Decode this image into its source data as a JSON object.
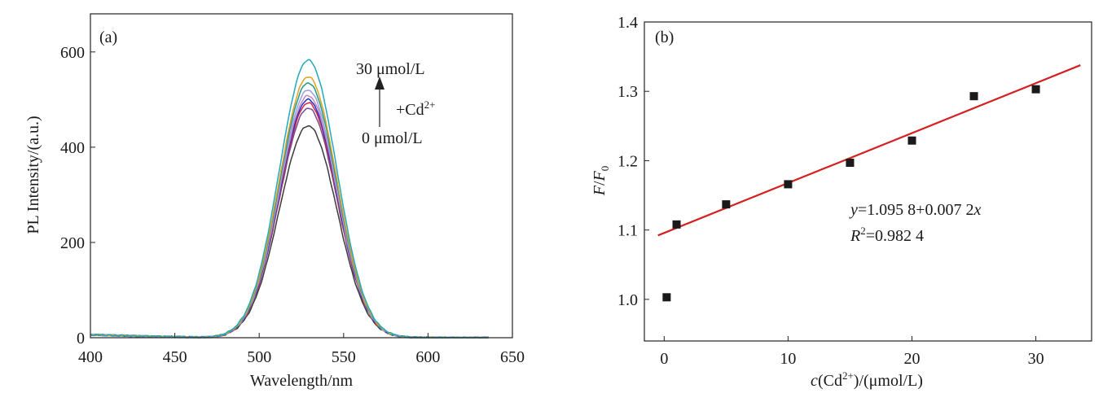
{
  "chart_data": [
    {
      "panel_label": "(a)",
      "type": "line",
      "xlabel": "Wavelength/nm",
      "ylabel": "PL Intensity/(a.u.)",
      "xlim": [
        400,
        650
      ],
      "ylim": [
        0,
        680
      ],
      "xticks": [
        "400",
        "450",
        "500",
        "550",
        "600",
        "650"
      ],
      "yticks": [
        "0",
        "200",
        "400",
        "600"
      ],
      "grid": false,
      "annotation": {
        "top": "30 μmol/L",
        "middle_prefix": "+Cd",
        "middle_sup": "2+",
        "bottom": "0 μmol/L"
      },
      "peak_center_nm": 529,
      "peak_width_sigma_nm": 17,
      "baseline_start": 6,
      "series": [
        {
          "color": "#3a3a3a",
          "peak": 445
        },
        {
          "color": "#7a4a8a",
          "peak": 482
        },
        {
          "color": "#d0283c",
          "peak": 493
        },
        {
          "color": "#2a2ad0",
          "peak": 500
        },
        {
          "color": "#c08ab8",
          "peak": 508
        },
        {
          "color": "#9aa0e0",
          "peak": 520
        },
        {
          "color": "#1e9a8c",
          "peak": 535
        },
        {
          "color": "#e0a020",
          "peak": 548
        },
        {
          "color": "#20a8c0",
          "peak": 583
        }
      ]
    },
    {
      "panel_label": "(b)",
      "type": "scatter",
      "xlabel": {
        "italic": "c",
        "pre": "(Cd",
        "sup": "2+",
        "post": ")/(μmol/L)"
      },
      "ylabel": {
        "italic1": "F",
        "slash": "/",
        "italic2": "F",
        "sub": "0"
      },
      "xlim": [
        -1.6,
        34.5
      ],
      "ylim": [
        0.94,
        1.4
      ],
      "xticks": [
        "0",
        "10",
        "20",
        "30"
      ],
      "yticks": [
        "1.0",
        "1.1",
        "1.2",
        "1.3",
        "1.4"
      ],
      "grid": false,
      "points": [
        {
          "x": 0.2,
          "y": 1.003
        },
        {
          "x": 1,
          "y": 1.108
        },
        {
          "x": 5,
          "y": 1.137
        },
        {
          "x": 10,
          "y": 1.166
        },
        {
          "x": 15,
          "y": 1.197
        },
        {
          "x": 20,
          "y": 1.229
        },
        {
          "x": 25,
          "y": 1.293
        },
        {
          "x": 30,
          "y": 1.303
        }
      ],
      "fit": {
        "intercept": 1.0958,
        "slope": 0.0072,
        "x_range": [
          -0.5,
          33.6
        ],
        "color": "#d42020"
      },
      "equation": {
        "y_var": "y",
        "eq_text": "=1.095 8+0.007 2",
        "x_var": "x"
      },
      "r2": {
        "var": "R",
        "sup": "2",
        "eq_text": "=0.982 4"
      }
    }
  ]
}
